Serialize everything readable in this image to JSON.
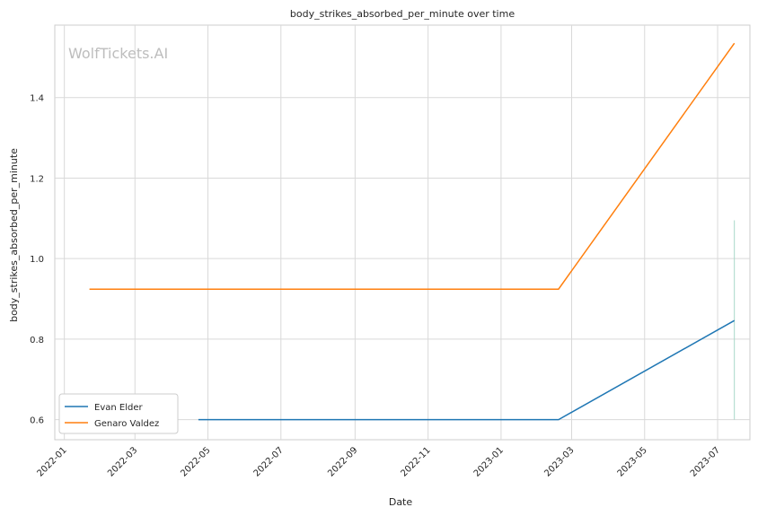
{
  "chart_data": {
    "type": "line",
    "title": "body_strikes_absorbed_per_minute over time",
    "xlabel": "Date",
    "ylabel": "body_strikes_absorbed_per_minute",
    "watermark": "WolfTickets.AI",
    "grid": true,
    "legend_position": "lower-left",
    "x_ticks": [
      "2022-01",
      "2022-03",
      "2022-05",
      "2022-07",
      "2022-09",
      "2022-11",
      "2023-01",
      "2023-03",
      "2023-05",
      "2023-07"
    ],
    "y_ticks": [
      "0.6",
      "0.8",
      "1.0",
      "1.2",
      "1.4"
    ],
    "ylim": [
      0.55,
      1.58
    ],
    "xlim": [
      "2021-12-24",
      "2023-07-28"
    ],
    "series": [
      {
        "name": "Evan Elder",
        "color": "#1f77b4",
        "points": [
          {
            "x": "2022-04-23",
            "y": 0.6
          },
          {
            "x": "2023-02-18",
            "y": 0.6
          },
          {
            "x": "2023-07-15",
            "y": 0.846
          }
        ]
      },
      {
        "name": "Genaro Valdez",
        "color": "#ff7f0e",
        "points": [
          {
            "x": "2022-01-22",
            "y": 0.924
          },
          {
            "x": "2023-02-18",
            "y": 0.924
          },
          {
            "x": "2023-07-15",
            "y": 1.535
          }
        ]
      }
    ],
    "marker_line": {
      "x": "2023-07-15",
      "y_range": [
        0.6,
        1.095
      ],
      "color": "#a8d8c9"
    }
  }
}
